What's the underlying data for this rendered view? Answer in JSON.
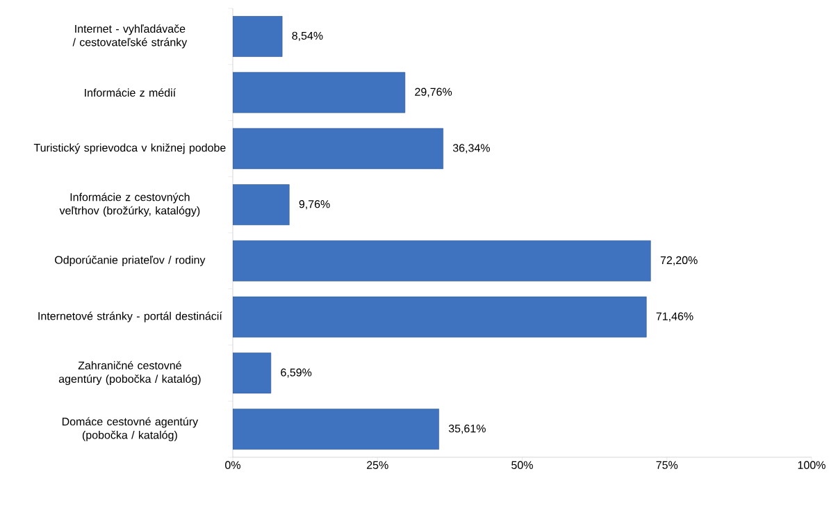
{
  "chart_data": {
    "type": "bar",
    "orientation": "horizontal",
    "categories": [
      "Internet - vyhľadávače / cestovateľské stránky",
      "Informácie z médií",
      "Turistický sprievodca v knižnej podobe",
      "Informácie z cestovných veľtrhov (brožúrky, katalógy)",
      "Odporúčanie priateľov / rodiny",
      "Internetové stránky - portál destinácií",
      "Zahraničné cestovné agentúry (pobočka / katalóg)",
      "Domáce cestovné agentúry (pobočka / katalóg)"
    ],
    "values": [
      8.54,
      29.76,
      36.34,
      9.76,
      72.2,
      71.46,
      6.59,
      35.61
    ],
    "value_labels": [
      "8,54%",
      "29,76%",
      "36,34%",
      "9,76%",
      "72,20%",
      "71,46%",
      "6,59%",
      "35,61%"
    ],
    "color": "#3f73c0",
    "xlim": [
      0,
      100
    ],
    "xticks": [
      {
        "value": 0,
        "label": "0%"
      },
      {
        "value": 25,
        "label": "25%"
      },
      {
        "value": 50,
        "label": "50%"
      },
      {
        "value": 75,
        "label": "75%"
      },
      {
        "value": 100,
        "label": "100%"
      }
    ],
    "grid": false
  }
}
